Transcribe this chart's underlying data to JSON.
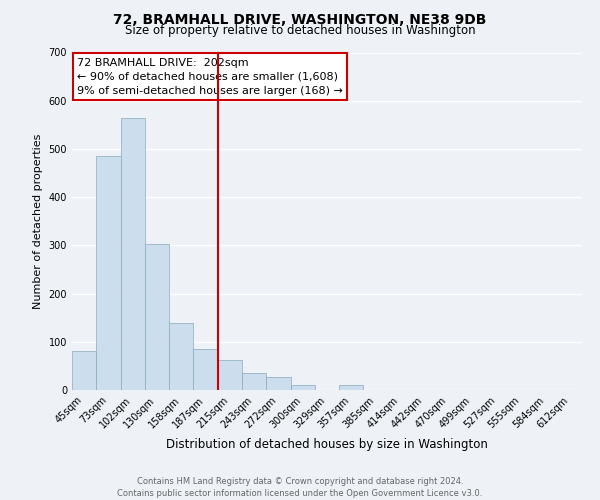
{
  "title": "72, BRAMHALL DRIVE, WASHINGTON, NE38 9DB",
  "subtitle": "Size of property relative to detached houses in Washington",
  "xlabel": "Distribution of detached houses by size in Washington",
  "ylabel": "Number of detached properties",
  "bar_color": "#ccdded",
  "bar_edge_color": "#88aabb",
  "categories": [
    "45sqm",
    "73sqm",
    "102sqm",
    "130sqm",
    "158sqm",
    "187sqm",
    "215sqm",
    "243sqm",
    "272sqm",
    "300sqm",
    "329sqm",
    "357sqm",
    "385sqm",
    "414sqm",
    "442sqm",
    "470sqm",
    "499sqm",
    "527sqm",
    "555sqm",
    "584sqm",
    "612sqm"
  ],
  "values": [
    80,
    485,
    565,
    302,
    140,
    85,
    62,
    35,
    28,
    10,
    0,
    10,
    0,
    0,
    0,
    0,
    0,
    0,
    0,
    0,
    0
  ],
  "ylim": [
    0,
    700
  ],
  "yticks": [
    0,
    100,
    200,
    300,
    400,
    500,
    600,
    700
  ],
  "red_line_index": 6,
  "annotation_title": "72 BRAMHALL DRIVE:  202sqm",
  "annotation_line1": "← 90% of detached houses are smaller (1,608)",
  "annotation_line2": "9% of semi-detached houses are larger (168) →",
  "annotation_box_facecolor": "#ffffff",
  "annotation_box_edgecolor": "#cc0000",
  "red_line_color": "#cc0000",
  "footer_line1": "Contains HM Land Registry data © Crown copyright and database right 2024.",
  "footer_line2": "Contains public sector information licensed under the Open Government Licence v3.0.",
  "bg_color": "#eef2f7",
  "grid_color": "#ffffff",
  "title_fontsize": 10,
  "subtitle_fontsize": 8.5,
  "ylabel_fontsize": 8,
  "xlabel_fontsize": 8.5,
  "tick_fontsize": 7,
  "annotation_fontsize": 8,
  "footer_fontsize": 6
}
